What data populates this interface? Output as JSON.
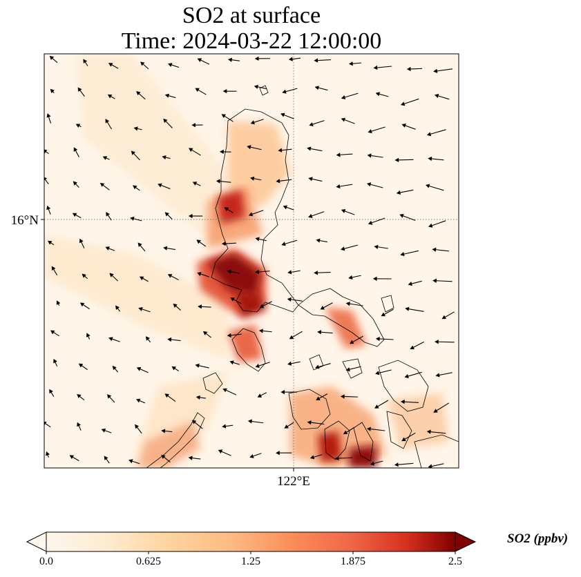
{
  "title": {
    "line1": "SO2 at surface",
    "line2": "Time: 2024-03-22 12:00:00"
  },
  "map": {
    "lat_label": "16°N",
    "lon_label": "122°E",
    "gridlines": "dotted"
  },
  "colorbar": {
    "label": "SO2 (ppbv)",
    "ticks": [
      "0.0",
      "0.625",
      "1.25",
      "1.875",
      "2.5"
    ],
    "min": 0.0,
    "max": 2.5,
    "colormap": "OrRd",
    "extend": "both"
  },
  "colors": {
    "low": "#fff7ec",
    "mid": "#fc8d59",
    "high": "#7f0000",
    "coastline": "#000000"
  },
  "wind_vectors": "black quiver arrows"
}
